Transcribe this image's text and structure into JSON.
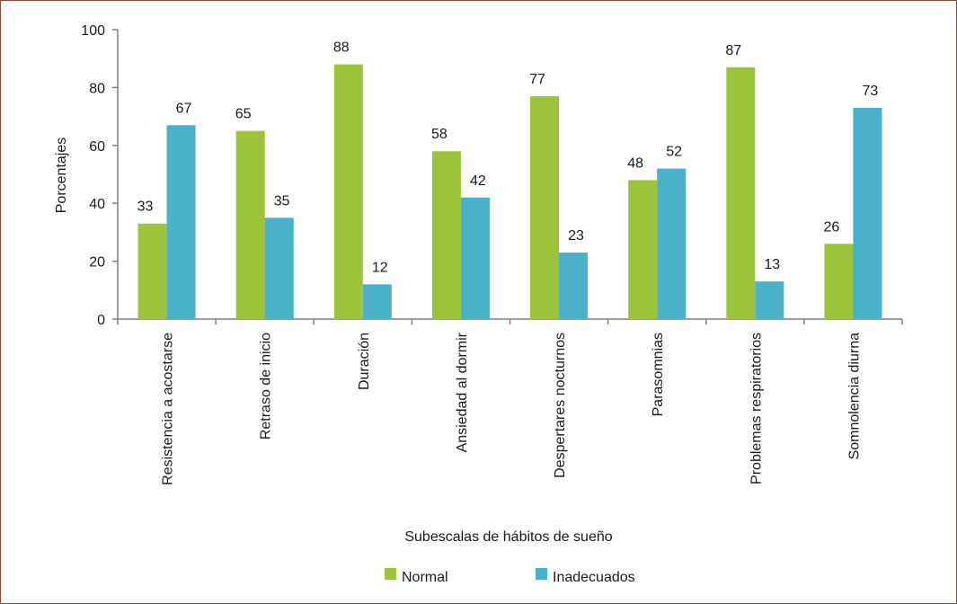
{
  "chart_data": {
    "type": "bar",
    "title": "",
    "xlabel": "Subescalas de hábitos de sueño",
    "ylabel": "Porcentajes",
    "ylim": [
      0,
      100
    ],
    "yticks": [
      0,
      20,
      40,
      60,
      80,
      100
    ],
    "grid": false,
    "legend_position": "bottom",
    "categories": [
      "Resistencia a acostarse",
      "Retraso de inicio",
      "Duración",
      "Ansiedad al dormir",
      "Despertares nocturnos",
      "Parasomnias",
      "Problemas respiratorios",
      "Somnolencia diurna"
    ],
    "series": [
      {
        "name": "Normal",
        "color": "#9bc43b",
        "values": [
          33,
          65,
          88,
          58,
          77,
          48,
          87,
          26
        ]
      },
      {
        "name": "Inadecuados",
        "color": "#4bb0c9",
        "values": [
          67,
          35,
          12,
          42,
          23,
          52,
          13,
          73
        ]
      }
    ]
  }
}
